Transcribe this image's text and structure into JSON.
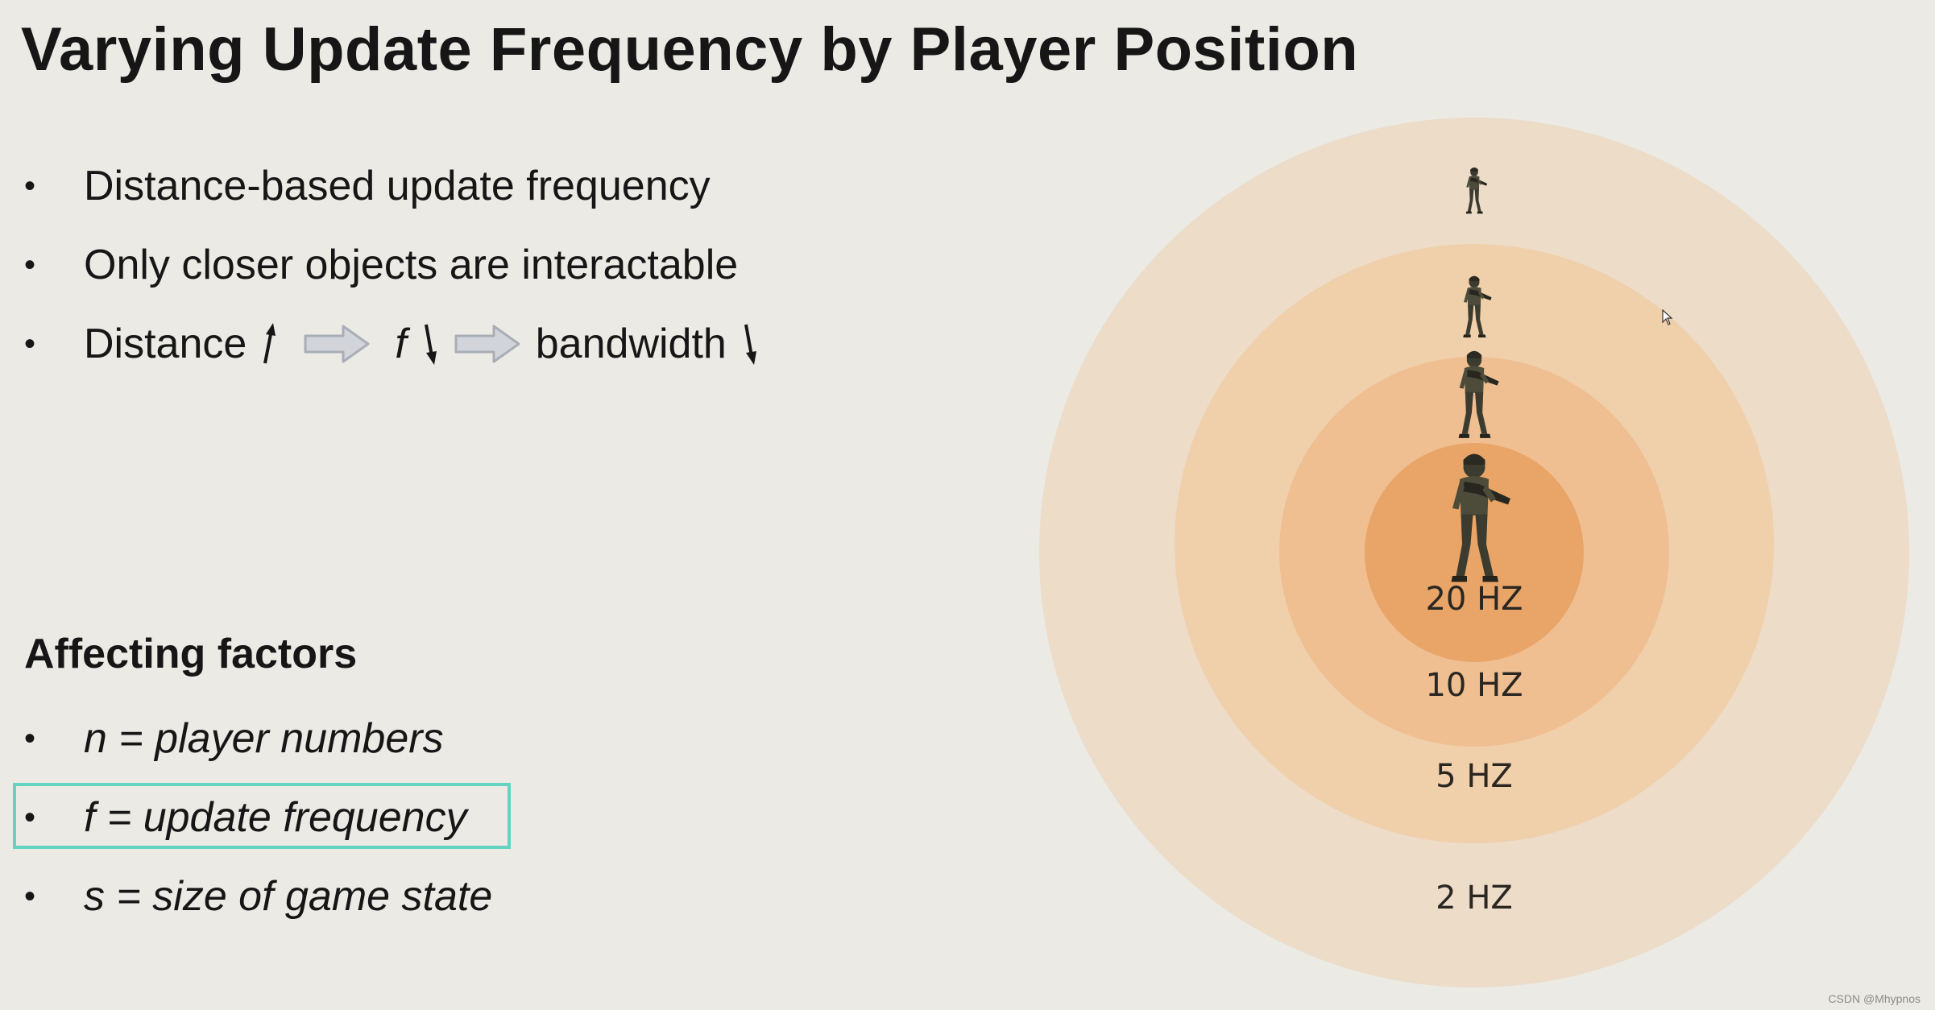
{
  "slide": {
    "title": "Varying Update Frequency by Player Position"
  },
  "bullets": [
    "Distance-based update frequency",
    "Only closer objects are interactable"
  ],
  "relation": {
    "distance_label": "Distance",
    "f_symbol": "f",
    "bandwidth_label": "bandwidth",
    "up_glyph": "↑",
    "down_glyph": "↓"
  },
  "factors": {
    "heading": "Affecting factors",
    "items": [
      "n = player numbers",
      "f = update frequency",
      "s = size of game state"
    ]
  },
  "rings": [
    {
      "label": "20 HZ",
      "color": "#e9a567"
    },
    {
      "label": "10 HZ",
      "color": "#efbf92"
    },
    {
      "label": "5 HZ",
      "color": "#f0cfab"
    },
    {
      "label": "2 HZ",
      "color": "#ecdcc8"
    }
  ],
  "colors": {
    "background": "#ebeae5",
    "highlight_border": "#63d3c2",
    "arrow_fill": "#d2d4da",
    "arrow_stroke": "#a9adb6"
  },
  "icons": [
    "soldier-icon",
    "right-arrow-icon",
    "up-arrow-icon",
    "down-arrow-icon"
  ],
  "watermark": "CSDN @Mhypnos"
}
